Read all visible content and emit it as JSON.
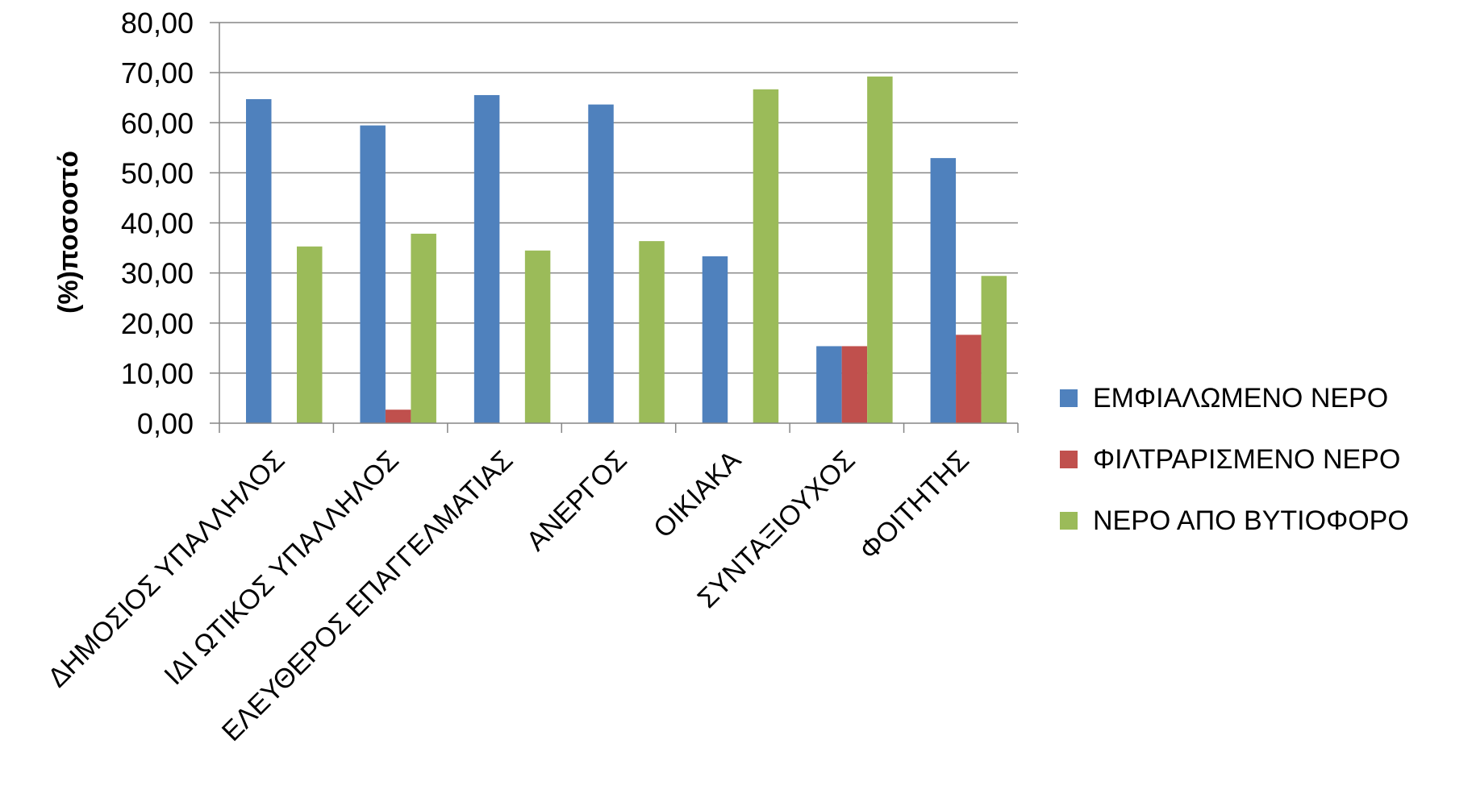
{
  "chart_data": {
    "type": "bar",
    "ylabel": "(%)ποσοστό",
    "ylim": [
      0,
      80
    ],
    "ytick_step": 10,
    "ytick_labels": [
      "0,00",
      "10,00",
      "20,00",
      "30,00",
      "40,00",
      "50,00",
      "60,00",
      "70,00",
      "80,00"
    ],
    "grid": true,
    "legend_position": "right",
    "categories": [
      "ΔΗΜΟΣΙΟΣ ΥΠΑΛΛΗΛΟΣ",
      "ΙΔΙ ΩΤΙΚΟΣ ΥΠΑΛΛΗΛΟΣ",
      "ΕΛΕΥΘΕΡΟΣ ΕΠΑΓΓΕΛΜΑΤΙΑΣ",
      "ΑΝΕΡΓΟΣ",
      "ΟΙΚΙΑΚΑ",
      "ΣΥΝΤΑΞΙΟΥΧΟΣ",
      "ΦΟΙΤΗΤΗΣ"
    ],
    "series": [
      {
        "name": "ΕΜΦΙΑΛΩΜΕΝΟ ΝΕΡΟ",
        "color": "#4F81BD",
        "values": [
          64.71,
          59.46,
          65.52,
          63.64,
          33.33,
          15.38,
          52.94
        ]
      },
      {
        "name": "ΦΙΛΤΡΑΡΙΣΜΕΝΟ ΝΕΡΟ",
        "color": "#C0504D",
        "values": [
          0,
          2.7,
          0,
          0,
          0,
          15.38,
          17.65
        ]
      },
      {
        "name": "ΝΕΡΟ ΑΠΟ ΒΥΤΙΟΦΟΡΟ",
        "color": "#9BBB59",
        "values": [
          35.29,
          37.84,
          34.48,
          36.36,
          66.67,
          69.23,
          29.41
        ]
      }
    ]
  }
}
